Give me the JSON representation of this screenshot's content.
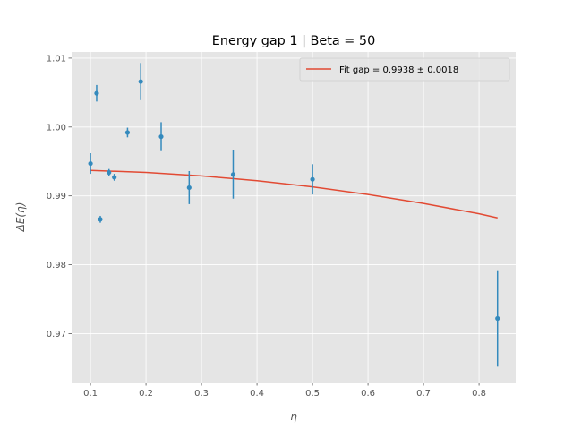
{
  "chart_data": {
    "type": "scatter",
    "title": "Energy gap 1 | Beta = 50",
    "xlabel": "η",
    "ylabel": "ΔE(η)",
    "xlim": [
      0.066,
      0.866
    ],
    "ylim": [
      0.9629,
      1.0109
    ],
    "xticks": [
      0.1,
      0.2,
      0.3,
      0.4,
      0.5,
      0.6,
      0.7,
      0.8
    ],
    "xtick_labels": [
      "0.1",
      "0.2",
      "0.3",
      "0.4",
      "0.5",
      "0.6",
      "0.7",
      "0.8"
    ],
    "yticks": [
      0.97,
      0.98,
      0.99,
      1.0,
      1.01
    ],
    "ytick_labels": [
      "0.97",
      "0.98",
      "0.99",
      "1.00",
      "1.01"
    ],
    "grid": true,
    "legend_position": "top-right",
    "colors": {
      "background": "#e5e5e5",
      "grid": "#ffffff",
      "data": "#348abd",
      "fit": "#e24a33"
    },
    "series": [
      {
        "kind": "errorbar",
        "points": [
          {
            "x": 0.1,
            "y": 0.9947,
            "err": 0.0015
          },
          {
            "x": 0.1111,
            "y": 1.0049,
            "err": 0.0012
          },
          {
            "x": 0.1176,
            "y": 0.9866,
            "err": 0.0005
          },
          {
            "x": 0.1333,
            "y": 0.9934,
            "err": 0.0005
          },
          {
            "x": 0.1429,
            "y": 0.9927,
            "err": 0.0005
          },
          {
            "x": 0.1667,
            "y": 0.9992,
            "err": 0.0007
          },
          {
            "x": 0.1905,
            "y": 1.0066,
            "err": 0.0027
          },
          {
            "x": 0.2273,
            "y": 0.9986,
            "err": 0.0021
          },
          {
            "x": 0.2778,
            "y": 0.9912,
            "err": 0.0024
          },
          {
            "x": 0.3571,
            "y": 0.9931,
            "err": 0.0035
          },
          {
            "x": 0.5,
            "y": 0.9924,
            "err": 0.0022
          },
          {
            "x": 0.8333,
            "y": 0.9722,
            "err": 0.007
          }
        ]
      },
      {
        "kind": "line",
        "name": "Fit gap = 0.9938 ± 0.0018",
        "x": [
          0.1,
          0.2,
          0.3,
          0.4,
          0.5,
          0.6,
          0.7,
          0.8,
          0.8333
        ],
        "y": [
          0.9937,
          0.9934,
          0.9929,
          0.9922,
          0.9913,
          0.9902,
          0.9889,
          0.9874,
          0.9868
        ]
      }
    ]
  }
}
